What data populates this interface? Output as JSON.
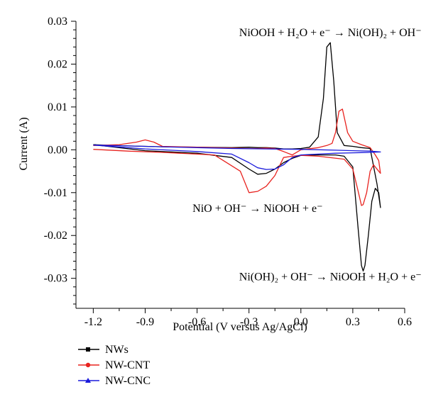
{
  "chart_data": {
    "type": "line",
    "xlabel": "Potential (V versus Ag/AgCl)",
    "ylabel": "Current (A)",
    "xlim": [
      -1.3,
      0.6
    ],
    "ylim": [
      -0.037,
      0.03
    ],
    "x_ticks": [
      -1.2,
      -0.9,
      -0.6,
      -0.3,
      0.0,
      0.3,
      0.6
    ],
    "x_tick_labels": [
      "-1.2",
      "-0.9",
      "-0.6",
      "-0.3",
      "0.0",
      "0.3",
      "0.6"
    ],
    "y_ticks": [
      0.03,
      0.02,
      0.01,
      0.0,
      -0.01,
      -0.02,
      -0.03
    ],
    "y_tick_labels": [
      "0.03",
      "0.02",
      "0.01",
      "0.00",
      "-0.01",
      "-0.02",
      "-0.03"
    ],
    "grid": false,
    "legend_position": "bottom-left below plot",
    "annotations": [
      {
        "id": "oxidation",
        "text": "NiOOH + H₂O + e⁻ → Ni(OH)₂ + OH⁻",
        "x": 0.17,
        "y": 0.0265
      },
      {
        "id": "nio",
        "text": "NiO + OH⁻ → NiOOH + e⁻",
        "x": -0.25,
        "y": -0.0145
      },
      {
        "id": "reduction",
        "text": "Ni(OH)₂ + OH⁻ → NiOOH + H₂O + e⁻",
        "x": 0.17,
        "y": -0.0305
      }
    ],
    "series": [
      {
        "name": "NWs",
        "color": "#000000",
        "marker": "square",
        "x": [
          -1.2,
          -1.0,
          -0.8,
          -0.6,
          -0.4,
          -0.3,
          -0.25,
          -0.2,
          -0.15,
          -0.1,
          -0.05,
          0.0,
          0.05,
          0.1,
          0.13,
          0.15,
          0.17,
          0.19,
          0.21,
          0.25,
          0.3,
          0.35,
          0.4,
          0.44,
          0.46,
          0.45,
          0.43,
          0.41,
          0.39,
          0.37,
          0.36,
          0.35,
          0.33,
          0.3,
          0.25,
          0.2,
          0.1,
          0.0,
          -0.05,
          -0.1,
          -0.15,
          -0.2,
          -0.25,
          -0.3,
          -0.4,
          -0.6,
          -0.9,
          -1.2
        ],
        "y": [
          0.0012,
          0.0009,
          0.0007,
          0.0006,
          0.0005,
          0.0006,
          0.0005,
          0.0005,
          0.0004,
          0.0002,
          0.0002,
          0.0003,
          0.0006,
          0.003,
          0.012,
          0.024,
          0.025,
          0.016,
          0.004,
          0.001,
          0.0008,
          0.0005,
          0.0003,
          -0.008,
          -0.0135,
          -0.01,
          -0.009,
          -0.012,
          -0.02,
          -0.027,
          -0.0283,
          -0.027,
          -0.018,
          -0.004,
          -0.0015,
          -0.0012,
          -0.0012,
          -0.0013,
          -0.002,
          -0.003,
          -0.0045,
          -0.0055,
          -0.0057,
          -0.0045,
          -0.0018,
          -0.0008,
          -0.0002,
          0.0012
        ]
      },
      {
        "name": "NW-CNT",
        "color": "#e8231f",
        "marker": "circle",
        "x": [
          -1.2,
          -1.05,
          -0.95,
          -0.9,
          -0.85,
          -0.8,
          -0.6,
          -0.4,
          -0.3,
          -0.25,
          -0.2,
          -0.15,
          -0.1,
          -0.05,
          0.0,
          0.1,
          0.15,
          0.18,
          0.2,
          0.22,
          0.24,
          0.27,
          0.3,
          0.35,
          0.4,
          0.43,
          0.45,
          0.46,
          0.45,
          0.42,
          0.4,
          0.38,
          0.36,
          0.35,
          0.33,
          0.3,
          0.25,
          0.1,
          0.0,
          -0.05,
          -0.1,
          -0.15,
          -0.2,
          -0.25,
          -0.3,
          -0.35,
          -0.5,
          -0.8,
          -1.0,
          -1.2
        ],
        "y": [
          0.001,
          0.0012,
          0.0018,
          0.0023,
          0.0018,
          0.0008,
          0.0006,
          0.0004,
          0.0003,
          0.0003,
          0.0004,
          0.0003,
          -0.0004,
          -0.0012,
          0.0,
          0.0005,
          0.001,
          0.0015,
          0.004,
          0.009,
          0.0095,
          0.004,
          0.002,
          0.0012,
          0.0005,
          -0.0012,
          -0.0025,
          -0.0055,
          -0.005,
          -0.0035,
          -0.005,
          -0.01,
          -0.0128,
          -0.013,
          -0.0095,
          -0.0045,
          -0.0022,
          -0.0015,
          -0.0013,
          -0.0015,
          -0.0018,
          -0.006,
          -0.0085,
          -0.0097,
          -0.01,
          -0.005,
          -0.0012,
          -0.0006,
          -0.0003,
          0.0001
        ]
      },
      {
        "name": "NW-CNC",
        "color": "#1a1adb",
        "marker": "triangle",
        "x": [
          -1.2,
          -1.0,
          -0.8,
          -0.6,
          -0.4,
          -0.2,
          0.0,
          0.2,
          0.3,
          0.4,
          0.46,
          0.4,
          0.3,
          0.2,
          0.1,
          0.0,
          -0.05,
          -0.1,
          -0.15,
          -0.2,
          -0.25,
          -0.3,
          -0.4,
          -0.6,
          -0.9,
          -1.2
        ],
        "y": [
          0.0011,
          0.0009,
          0.0007,
          0.0005,
          0.0003,
          0.0002,
          0.0001,
          -0.0001,
          -0.0002,
          -0.0003,
          -0.0005,
          -0.0006,
          -0.0007,
          -0.0008,
          -0.001,
          -0.0012,
          -0.0018,
          -0.0035,
          -0.0045,
          -0.0046,
          -0.0042,
          -0.003,
          -0.001,
          -0.0004,
          0.0002,
          0.0011
        ]
      }
    ]
  }
}
